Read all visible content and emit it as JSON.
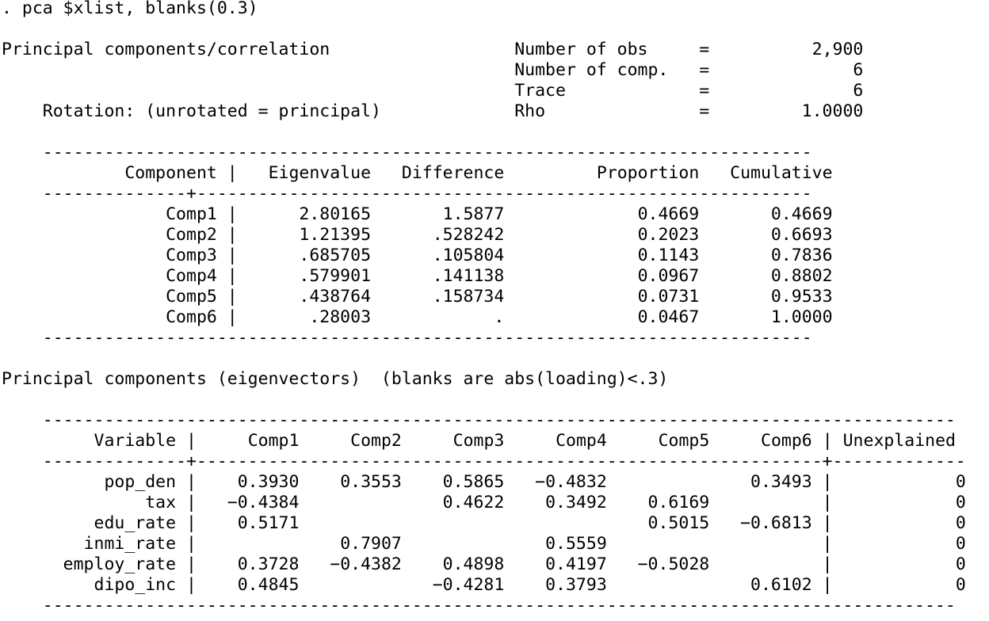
{
  "command": ". pca $xlist, blanks(0.3)",
  "summary": {
    "title": "Principal components/correlation",
    "rotation": "Rotation: (unrotated = principal)",
    "stats": [
      {
        "label": "Number of obs",
        "value": "2,900"
      },
      {
        "label": "Number of comp.",
        "value": "6"
      },
      {
        "label": "Trace",
        "value": "6"
      },
      {
        "label": "Rho",
        "value": "1.0000"
      }
    ]
  },
  "eigen_table": {
    "headers": [
      "Component",
      "Eigenvalue",
      "Difference",
      "Proportion",
      "Cumulative"
    ],
    "rows": [
      [
        "Comp1",
        "2.80165",
        "1.5877",
        "0.4669",
        "0.4669"
      ],
      [
        "Comp2",
        "1.21395",
        ".528242",
        "0.2023",
        "0.6693"
      ],
      [
        "Comp3",
        ".685705",
        ".105804",
        "0.1143",
        "0.7836"
      ],
      [
        "Comp4",
        ".579901",
        ".141138",
        "0.0967",
        "0.8802"
      ],
      [
        "Comp5",
        ".438764",
        ".158734",
        "0.0731",
        "0.9533"
      ],
      [
        "Comp6",
        ".28003",
        ".",
        "0.0467",
        "1.0000"
      ]
    ]
  },
  "eigenvectors": {
    "title": "Principal components (eigenvectors)  (blanks are abs(loading)<.3)",
    "headers": [
      "Variable",
      "Comp1",
      "Comp2",
      "Comp3",
      "Comp4",
      "Comp5",
      "Comp6",
      "Unexplained"
    ],
    "rows": [
      [
        "pop_den",
        "0.3930",
        "0.3553",
        "0.5865",
        "-0.4832",
        "",
        "0.3493",
        "0"
      ],
      [
        "tax",
        "-0.4384",
        "",
        "0.4622",
        "0.3492",
        "0.6169",
        "",
        "0"
      ],
      [
        "edu_rate",
        "0.5171",
        "",
        "",
        "",
        "0.5015",
        "-0.6813",
        "0"
      ],
      [
        "inmi_rate",
        "",
        "0.7907",
        "",
        "0.5559",
        "",
        "",
        "0"
      ],
      [
        "employ_rate",
        "0.3728",
        "-0.4382",
        "0.4898",
        "0.4197",
        "-0.5028",
        "",
        "0"
      ],
      [
        "dipo_inc",
        "0.4845",
        "",
        "-0.4281",
        "0.3793",
        "",
        "0.6102",
        "0"
      ]
    ]
  }
}
